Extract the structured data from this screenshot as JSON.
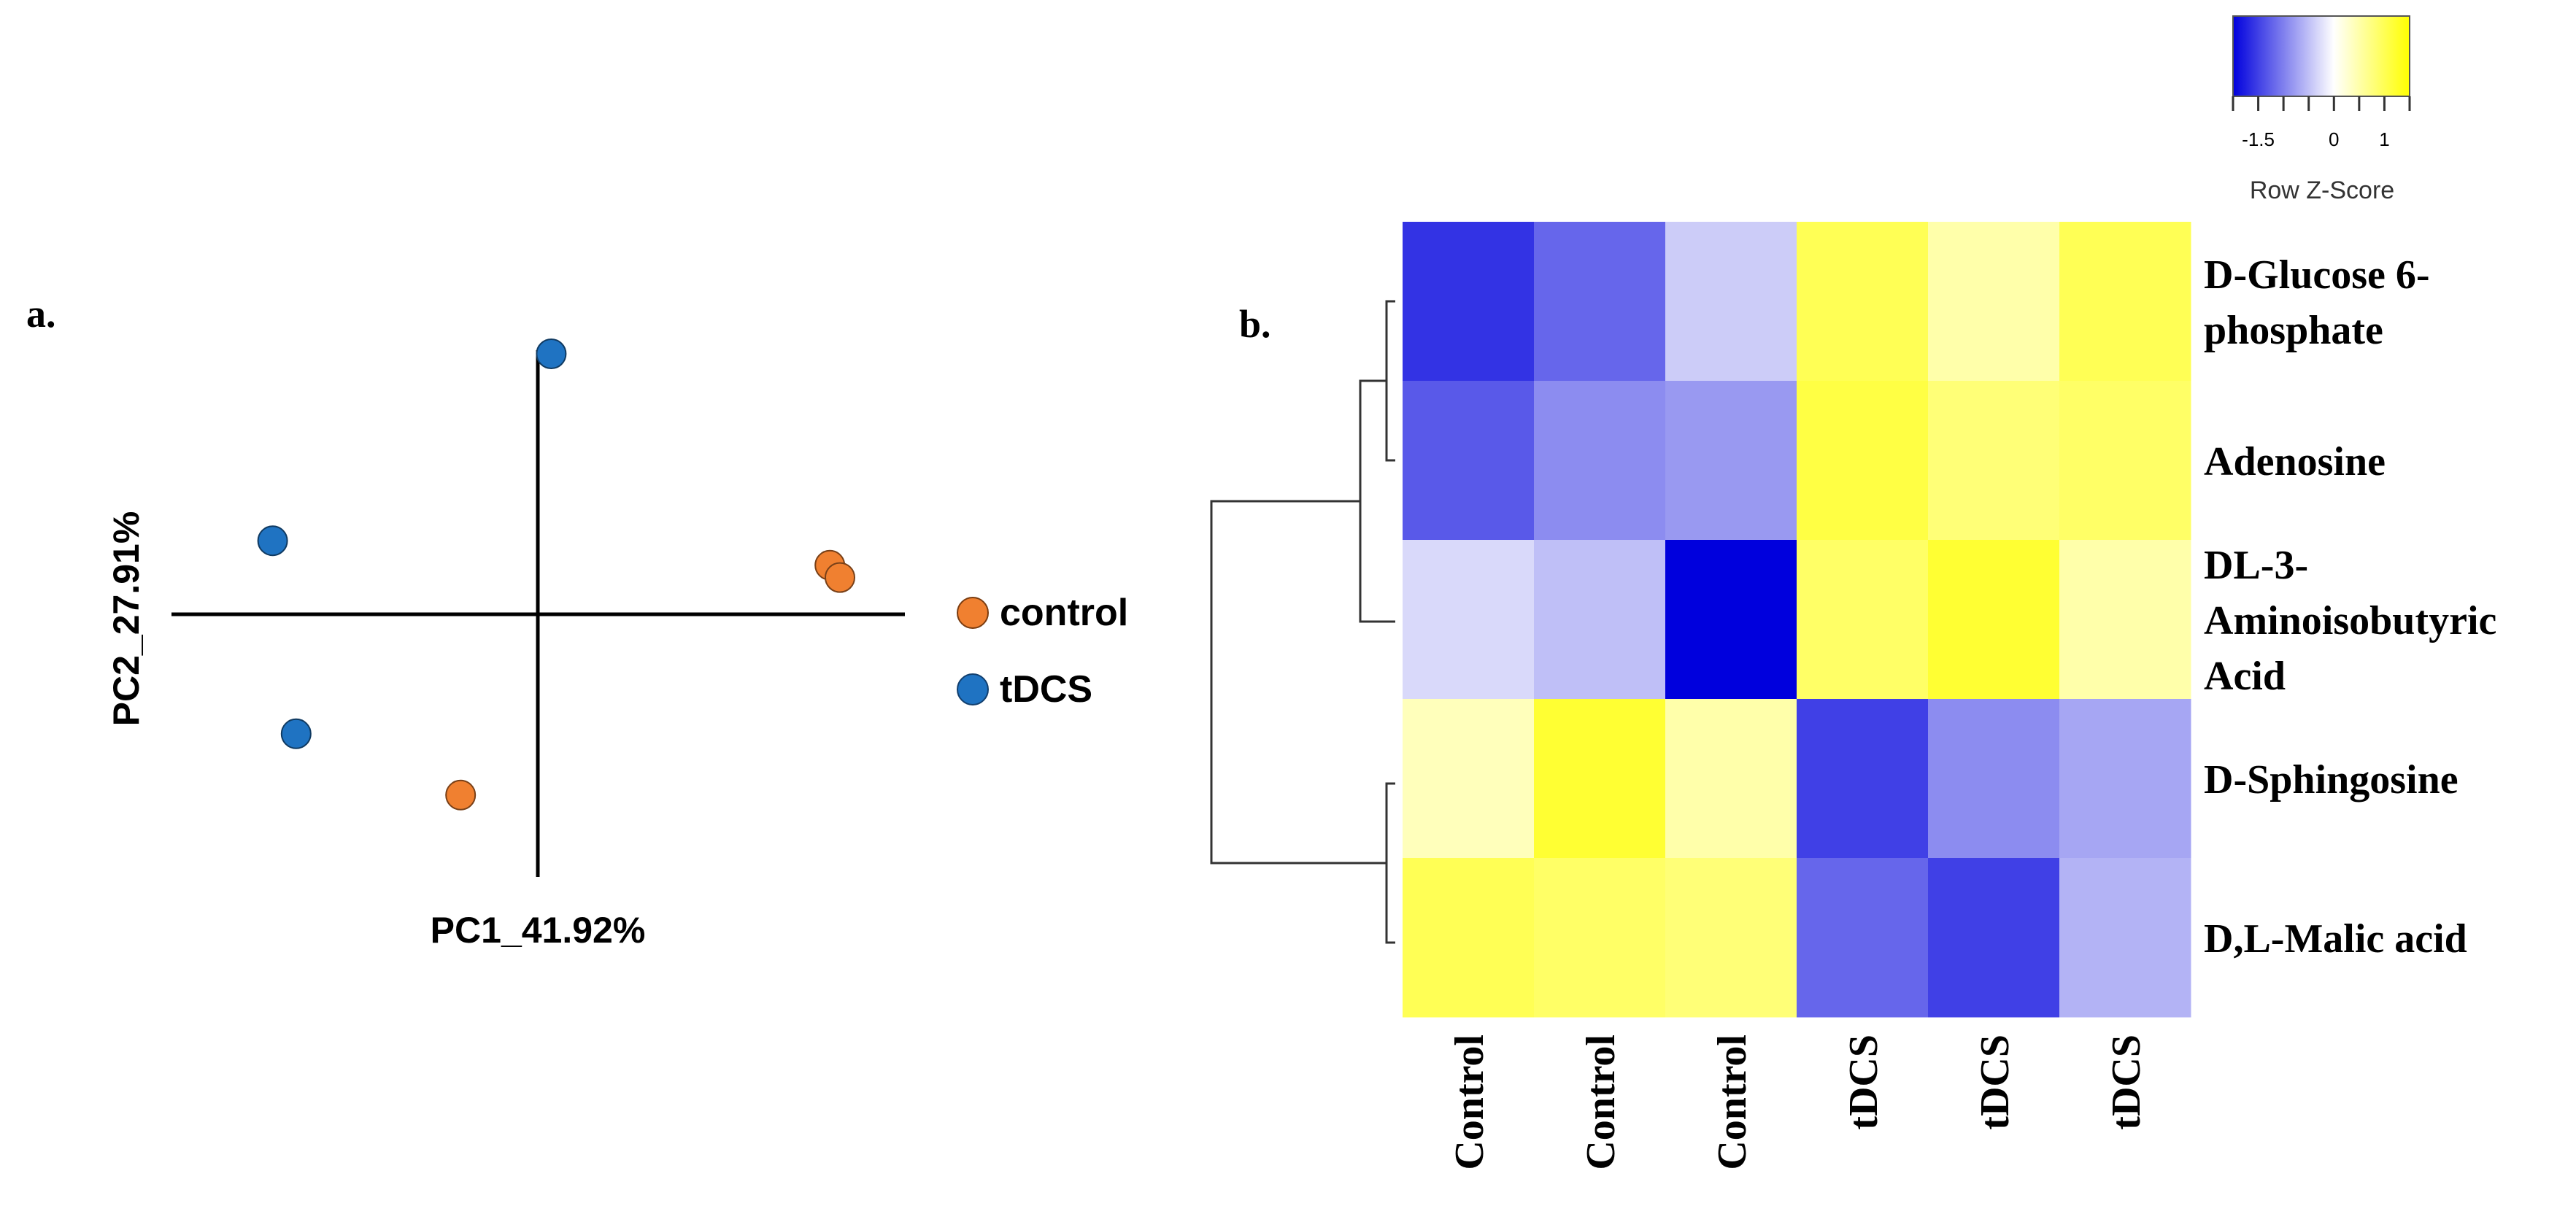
{
  "chart_data": [
    {
      "type": "scatter",
      "panel_label": "a.",
      "xlabel": "PC1_41.92%",
      "ylabel": "PC2_27.91%",
      "xlim": [
        -1,
        1
      ],
      "ylim": [
        -1,
        1
      ],
      "legend_position": "right",
      "series": [
        {
          "name": "control",
          "color": "#f08030",
          "points": [
            {
              "x": 0.87,
              "y": 0.16
            },
            {
              "x": 0.9,
              "y": 0.12
            },
            {
              "x": -0.23,
              "y": -0.59
            }
          ]
        },
        {
          "name": "tDCS",
          "color": "#1f73c2",
          "points": [
            {
              "x": 0.04,
              "y": 0.85
            },
            {
              "x": -0.79,
              "y": 0.24
            },
            {
              "x": -0.72,
              "y": -0.39
            }
          ]
        }
      ]
    },
    {
      "type": "heatmap",
      "panel_label": "b.",
      "columns": [
        "Control",
        "Control",
        "Control",
        "tDCS",
        "tDCS",
        "tDCS"
      ],
      "rows": [
        {
          "label_lines": [
            "D-Glucose 6-",
            "phosphate"
          ],
          "values": [
            -1.6,
            -1.2,
            -0.4,
            1.0,
            0.5,
            1.0
          ]
        },
        {
          "label_lines": [
            "Adenosine"
          ],
          "values": [
            -1.3,
            -0.9,
            -0.8,
            1.1,
            0.8,
            0.9
          ]
        },
        {
          "label_lines": [
            "DL-3-",
            "Aminoisobutyric",
            "Acid"
          ],
          "values": [
            -0.3,
            -0.5,
            -2.0,
            0.9,
            1.2,
            0.5
          ]
        },
        {
          "label_lines": [
            "D-Sphingosine"
          ],
          "values": [
            0.4,
            1.2,
            0.5,
            -1.5,
            -0.9,
            -0.7
          ]
        },
        {
          "label_lines": [
            "D,L-Malic acid"
          ],
          "values": [
            1.0,
            0.9,
            0.8,
            -1.2,
            -1.5,
            -0.6
          ]
        }
      ],
      "color_scale": {
        "title": "Row Z-Score",
        "range": [
          -2,
          1.5
        ],
        "low_color": "#0000dd",
        "mid_color": "#ffffff",
        "high_color": "#ffff00",
        "tick_labels": [
          "-1.5",
          "0",
          "1"
        ],
        "tick_values": [
          -1.5,
          0,
          1
        ]
      },
      "dendrogram": "row clustering: (((D-Glucose 6-phosphate, Adenosine), DL-3-Aminoisobutyric Acid), (D-Sphingosine, D,L-Malic acid))"
    }
  ]
}
